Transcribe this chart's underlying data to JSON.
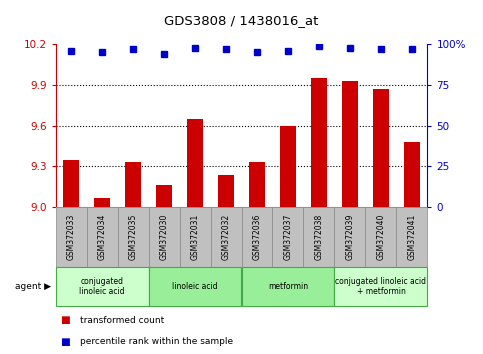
{
  "title": "GDS3808 / 1438016_at",
  "samples": [
    "GSM372033",
    "GSM372034",
    "GSM372035",
    "GSM372030",
    "GSM372031",
    "GSM372032",
    "GSM372036",
    "GSM372037",
    "GSM372038",
    "GSM372039",
    "GSM372040",
    "GSM372041"
  ],
  "bar_values": [
    9.35,
    9.07,
    9.33,
    9.16,
    9.65,
    9.24,
    9.33,
    9.6,
    9.95,
    9.93,
    9.87,
    9.48
  ],
  "dot_values": [
    96,
    95,
    97,
    94,
    98,
    97,
    95,
    96,
    99,
    98,
    97,
    97
  ],
  "ylim_left": [
    9.0,
    10.2
  ],
  "ylim_right": [
    0,
    100
  ],
  "yticks_left": [
    9.0,
    9.3,
    9.6,
    9.9,
    10.2
  ],
  "yticks_right": [
    0,
    25,
    50,
    75,
    100
  ],
  "gridlines": [
    9.3,
    9.6,
    9.9
  ],
  "bar_color": "#cc0000",
  "dot_color": "#0000cc",
  "agent_groups": [
    {
      "label": "conjugated\nlinoleic acid",
      "start": 0,
      "end": 3,
      "color": "#ccffcc"
    },
    {
      "label": "linoleic acid",
      "start": 3,
      "end": 6,
      "color": "#99ee99"
    },
    {
      "label": "metformin",
      "start": 6,
      "end": 9,
      "color": "#99ee99"
    },
    {
      "label": "conjugated linoleic acid\n+ metformin",
      "start": 9,
      "end": 12,
      "color": "#ccffcc"
    }
  ],
  "left_axis_color": "#cc0000",
  "right_axis_color": "#0000cc",
  "bar_width": 0.5,
  "sample_bg_color": "#c0c0c0",
  "sample_edge_color": "#888888",
  "agent_edge_color": "#44aa44"
}
